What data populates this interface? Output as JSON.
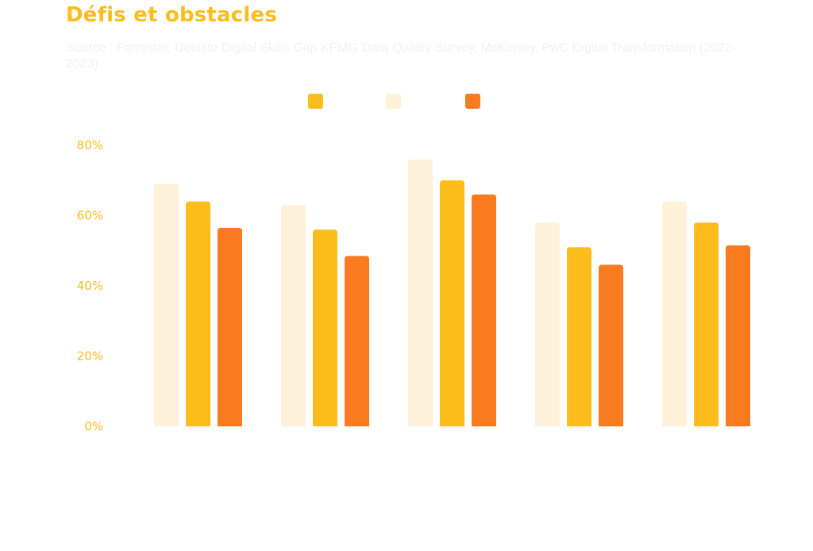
{
  "title": "Défis et obstacles",
  "subtitle": "Source : Forrester, Deloitte Digital Skills Gap KPMG Data Quality Survey, McKinsey, PwC Digital Transformation (2022-2023)",
  "chart_data": {
    "type": "bar",
    "categories": [
      "",
      "",
      "",
      "",
      ""
    ],
    "series": [
      {
        "color": "#fdf1da",
        "values": [
          69,
          63,
          76,
          58,
          64
        ]
      },
      {
        "color": "#fbbc1c",
        "values": [
          64,
          56,
          70,
          51,
          58
        ]
      },
      {
        "color": "#f97a1f",
        "values": [
          56.5,
          48.5,
          66,
          46,
          51.5
        ]
      }
    ],
    "legend": {
      "placement": "top-center",
      "order": [
        1,
        0,
        2
      ]
    },
    "yticks": [
      "0%",
      "20%",
      "40%",
      "60%",
      "80%"
    ],
    "ylim": [
      0,
      80
    ],
    "grid": false
  }
}
